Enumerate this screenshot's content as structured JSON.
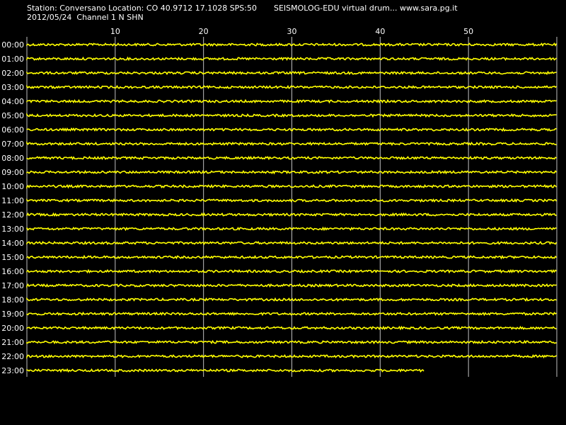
{
  "header": {
    "station_line": "Station: Conversano Location: CO 40.9712 17.1028 SPS:50",
    "date_line": "2012/05/24  Channel 1 N SHN",
    "software": "SEISMOLOG-EDU virtual drum... www.sara.pg.it"
  },
  "colors": {
    "background": "#000000",
    "trace": "#ffff00",
    "grid": "#c0c0c0",
    "text": "#ffffff"
  },
  "chart_data": {
    "type": "line",
    "title": "",
    "xlabel": "",
    "ylabel": "",
    "x_ticks": [
      10,
      20,
      30,
      40,
      50
    ],
    "xlim": [
      0,
      60
    ],
    "grid": true,
    "rows": [
      "00:00",
      "01:00",
      "02:00",
      "03:00",
      "04:00",
      "05:00",
      "06:00",
      "07:00",
      "08:00",
      "09:00",
      "10:00",
      "11:00",
      "12:00",
      "13:00",
      "14:00",
      "15:00",
      "16:00",
      "17:00",
      "18:00",
      "19:00",
      "20:00",
      "21:00",
      "22:00",
      "23:00"
    ],
    "row_coverage_minutes": [
      60,
      60,
      60,
      60,
      60,
      60,
      60,
      60,
      60,
      60,
      60,
      60,
      60,
      60,
      60,
      60,
      60,
      60,
      60,
      60,
      60,
      60,
      60,
      45
    ]
  }
}
